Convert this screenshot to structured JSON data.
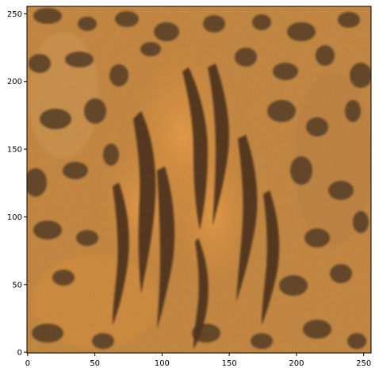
{
  "figure": {
    "background": "#ffffff",
    "image": {
      "description": "texture",
      "shape": [
        256,
        256
      ],
      "colors": {
        "base": "#c98d44",
        "light": "#e6b06a",
        "orange": "#df8f3a",
        "bright_orange": "#f2a24f",
        "dark_spot": "#2a201b",
        "stripe": "#140e0b",
        "mid_brown": "#8a5a2e"
      }
    },
    "x_axis": {
      "range": [
        -0.5,
        255.5
      ],
      "ticks": [
        0,
        50,
        100,
        150,
        200,
        250
      ],
      "tick_labels": [
        "0",
        "50",
        "100",
        "150",
        "200",
        "250"
      ]
    },
    "y_axis": {
      "range": [
        255.5,
        -0.5
      ],
      "ticks": [
        0,
        50,
        100,
        150,
        200,
        250
      ],
      "tick_labels": [
        "0",
        "50",
        "100",
        "150",
        "200",
        "250"
      ],
      "inverted": true
    },
    "axes_color": "#000000"
  }
}
